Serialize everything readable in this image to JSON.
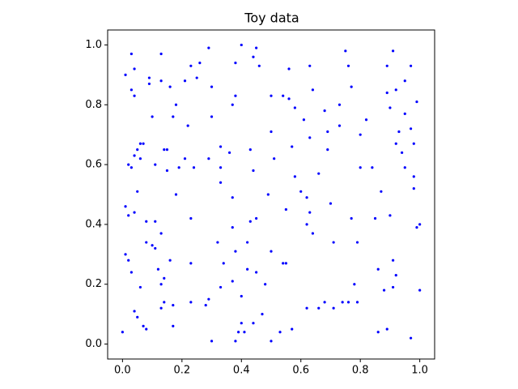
{
  "chart_data": {
    "type": "scatter",
    "title": "Toy data",
    "color": "#0000ff",
    "xlim": [
      -0.05,
      1.05
    ],
    "ylim": [
      -0.05,
      1.05
    ],
    "xticks": [
      {
        "value": 0,
        "label": "0.0"
      },
      {
        "value": 0.2,
        "label": "0.2"
      },
      {
        "value": 0.4,
        "label": "0.4"
      },
      {
        "value": 0.6,
        "label": "0.6"
      },
      {
        "value": 0.8,
        "label": "0.8"
      },
      {
        "value": 1,
        "label": "1.0"
      }
    ],
    "yticks": [
      {
        "value": 0,
        "label": "0.0"
      },
      {
        "value": 0.2,
        "label": "0.2"
      },
      {
        "value": 0.4,
        "label": "0.4"
      },
      {
        "value": 0.6,
        "label": "0.6"
      },
      {
        "value": 0.8,
        "label": "0.8"
      },
      {
        "value": 1,
        "label": "1.0"
      }
    ],
    "x": [
      0.0,
      0.01,
      0.02,
      0.03,
      0.04,
      0.05,
      0.06,
      0.07,
      0.08,
      0.01,
      0.02,
      0.04,
      0.05,
      0.05,
      0.06,
      0.07,
      0.04,
      0.02,
      0.03,
      0.06,
      0.01,
      0.03,
      0.03,
      0.04,
      0.04,
      0.09,
      0.09,
      0.1,
      0.08,
      0.08,
      0.1,
      0.11,
      0.11,
      0.12,
      0.13,
      0.13,
      0.13,
      0.14,
      0.14,
      0.16,
      0.17,
      0.17,
      0.18,
      0.11,
      0.14,
      0.15,
      0.15,
      0.17,
      0.18,
      0.19,
      0.21,
      0.22,
      0.23,
      0.23,
      0.23,
      0.23,
      0.21,
      0.25,
      0.26,
      0.28,
      0.13,
      0.13,
      0.16,
      0.24,
      0.29,
      0.3,
      0.3,
      0.29,
      0.29,
      0.3,
      0.33,
      0.33,
      0.33,
      0.32,
      0.33,
      0.34,
      0.36,
      0.37,
      0.38,
      0.39,
      0.37,
      0.38,
      0.38,
      0.37,
      0.37,
      0.38,
      0.4,
      0.4,
      0.41,
      0.42,
      0.42,
      0.43,
      0.43,
      0.44,
      0.44,
      0.45,
      0.45,
      0.4,
      0.44,
      0.45,
      0.46,
      0.49,
      0.5,
      0.5,
      0.47,
      0.48,
      0.5,
      0.5,
      0.51,
      0.53,
      0.54,
      0.55,
      0.55,
      0.54,
      0.56,
      0.56,
      0.57,
      0.57,
      0.58,
      0.58,
      0.6,
      0.61,
      0.62,
      0.62,
      0.62,
      0.63,
      0.63,
      0.64,
      0.63,
      0.64,
      0.66,
      0.66,
      0.68,
      0.68,
      0.69,
      0.7,
      0.69,
      0.71,
      0.73,
      0.73,
      0.71,
      0.74,
      0.76,
      0.75,
      0.77,
      0.77,
      0.78,
      0.76,
      0.79,
      0.79,
      0.8,
      0.8,
      0.82,
      0.84,
      0.85,
      0.86,
      0.87,
      0.89,
      0.89,
      0.91,
      0.89,
      0.92,
      0.9,
      0.92,
      0.93,
      0.94,
      0.95,
      0.95,
      0.95,
      0.97,
      0.97,
      0.98,
      0.98,
      0.98,
      0.99,
      0.99,
      1.0,
      1.0,
      0.86,
      0.88,
      0.91,
      0.91,
      0.92,
      0.9,
      0.97
    ],
    "values": [
      0.04,
      0.3,
      0.28,
      0.24,
      0.11,
      0.09,
      0.19,
      0.06,
      0.05,
      0.46,
      0.43,
      0.44,
      0.51,
      0.65,
      0.67,
      0.67,
      0.63,
      0.6,
      0.59,
      0.62,
      0.9,
      0.97,
      0.85,
      0.83,
      0.92,
      0.89,
      0.87,
      0.76,
      0.41,
      0.34,
      0.33,
      0.32,
      0.41,
      0.25,
      0.37,
      0.12,
      0.2,
      0.22,
      0.14,
      0.28,
      0.13,
      0.06,
      0.5,
      0.6,
      0.65,
      0.65,
      0.58,
      0.76,
      0.8,
      0.59,
      0.62,
      0.73,
      0.42,
      0.27,
      0.14,
      0.93,
      0.88,
      0.89,
      0.94,
      0.13,
      0.88,
      0.97,
      0.86,
      0.59,
      0.62,
      0.76,
      0.86,
      0.99,
      0.15,
      0.01,
      0.66,
      0.59,
      0.54,
      0.34,
      0.19,
      0.27,
      0.64,
      0.8,
      0.83,
      0.04,
      0.21,
      0.31,
      0.01,
      0.49,
      0.39,
      0.94,
      0.16,
      0.07,
      0.04,
      0.25,
      0.34,
      0.41,
      0.65,
      0.58,
      0.07,
      0.24,
      0.42,
      1.0,
      0.96,
      0.99,
      0.93,
      0.5,
      0.83,
      0.71,
      0.1,
      0.2,
      0.31,
      0.01,
      0.62,
      0.04,
      0.27,
      0.45,
      0.27,
      0.83,
      0.82,
      0.92,
      0.66,
      0.05,
      0.56,
      0.79,
      0.51,
      0.75,
      0.49,
      0.12,
      0.4,
      0.44,
      0.69,
      0.85,
      0.93,
      0.37,
      0.12,
      0.57,
      0.14,
      0.78,
      0.71,
      0.47,
      0.65,
      0.34,
      0.8,
      0.73,
      0.12,
      0.14,
      0.93,
      0.98,
      0.86,
      0.42,
      0.2,
      0.14,
      0.14,
      0.34,
      0.59,
      0.7,
      0.75,
      0.59,
      0.42,
      0.04,
      0.51,
      0.05,
      0.93,
      0.98,
      0.84,
      0.85,
      0.79,
      0.67,
      0.71,
      0.64,
      0.59,
      0.77,
      0.88,
      0.93,
      0.72,
      0.67,
      0.56,
      0.52,
      0.39,
      0.81,
      0.18,
      0.4,
      0.25,
      0.18,
      0.19,
      0.28,
      0.23,
      0.43,
      0.02
    ]
  }
}
